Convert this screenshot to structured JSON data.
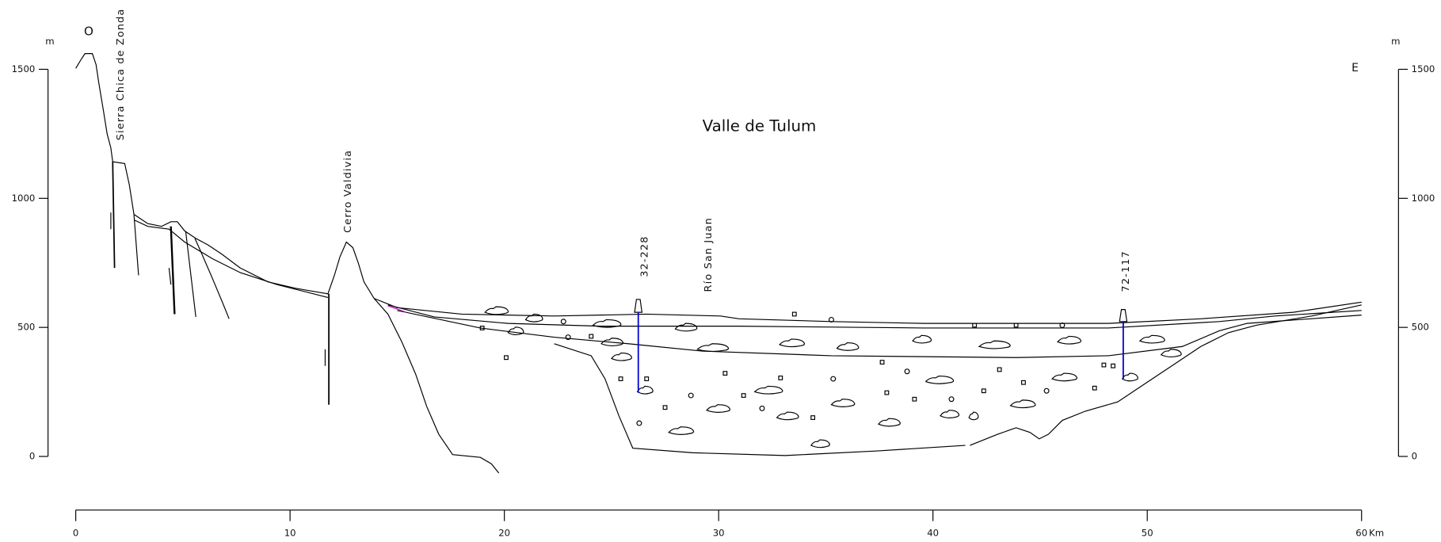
{
  "labels": {
    "west": "O",
    "east": "E",
    "left_unit": "m",
    "right_unit": "m",
    "title": "Valle de Tulum",
    "sierra": "Sierra Chica de Zonda",
    "cerro": "Cerro Valdivia",
    "well_1": "32-228",
    "river": "Río San Juan",
    "well_2": "72-117"
  },
  "left_axis": {
    "ticks": [
      0,
      500,
      1000,
      1500
    ]
  },
  "right_axis": {
    "ticks": [
      0,
      500,
      1000,
      1500
    ]
  },
  "bottom_axis": {
    "ticks": [
      0,
      10,
      20,
      30,
      40,
      50,
      60
    ],
    "unit": "Km"
  }
}
